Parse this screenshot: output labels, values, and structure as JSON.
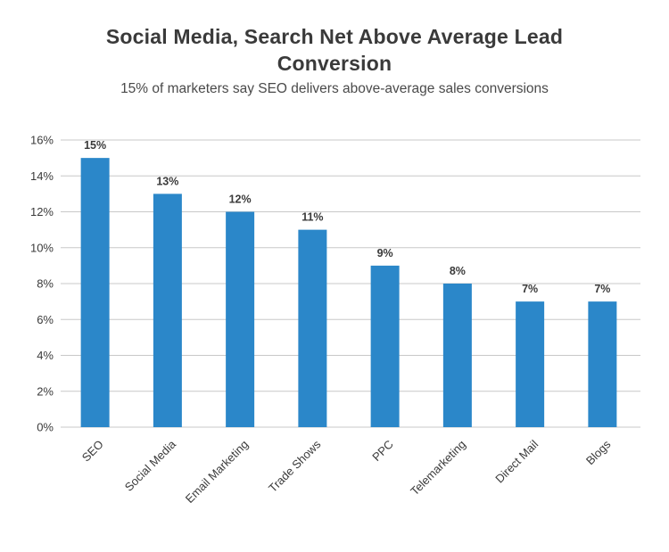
{
  "chart_data": {
    "type": "bar",
    "title_lines": [
      "Social Media, Search Net Above Average Lead",
      "Conversion"
    ],
    "subtitle": "15% of marketers say SEO delivers above-average sales conversions",
    "categories": [
      "SEO",
      "Social Media",
      "Email Marketing",
      "Trade Shows",
      "PPC",
      "Telemarketing",
      "Direct Mail",
      "Blogs"
    ],
    "values": [
      15,
      13,
      12,
      11,
      9,
      8,
      7,
      7
    ],
    "data_labels": [
      "15%",
      "13%",
      "12%",
      "11%",
      "9%",
      "8%",
      "7%",
      "7%"
    ],
    "ylim": [
      0,
      16
    ],
    "yticks": [
      0,
      2,
      4,
      6,
      8,
      10,
      12,
      14,
      16
    ],
    "ytick_labels": [
      "0%",
      "2%",
      "4%",
      "6%",
      "8%",
      "10%",
      "12%",
      "14%",
      "16%"
    ],
    "grid": true,
    "bar_color": "#2b87c9",
    "grid_color": "#c8c8c8"
  }
}
